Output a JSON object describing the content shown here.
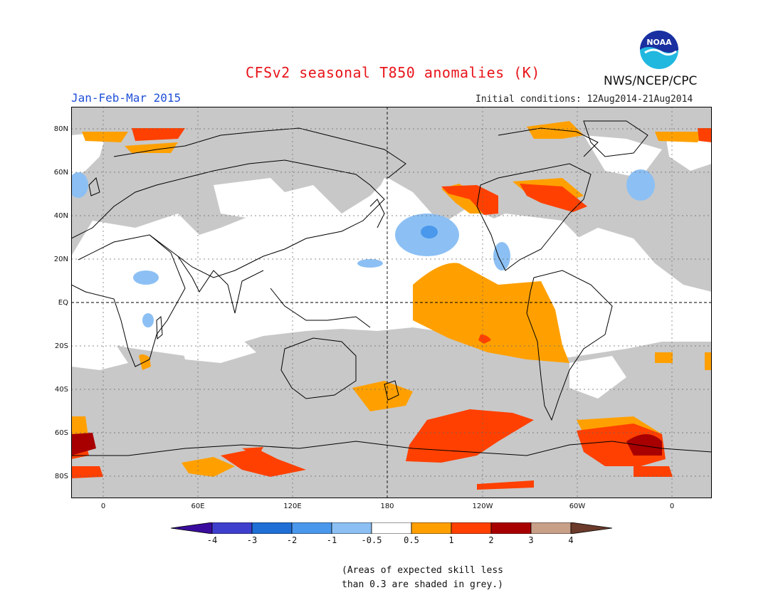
{
  "header": {
    "title": "CFSv2 seasonal T850 anomalies (K)",
    "period": "Jan-Feb-Mar 2015",
    "initial_conditions": "Initial conditions: 12Aug2014-21Aug2014",
    "organization": "NWS/NCEP/CPC",
    "logo_text": "NOAA"
  },
  "map": {
    "lat_labels": [
      "80N",
      "60N",
      "40N",
      "20N",
      "EQ",
      "20S",
      "40S",
      "60S",
      "80S"
    ],
    "lon_labels": [
      "0",
      "60E",
      "120E",
      "180",
      "120W",
      "60W",
      "0"
    ],
    "colors": {
      "skill_grey": "#c8c8c8",
      "land_outline": "#000000"
    }
  },
  "legend": {
    "tick_labels": [
      "-4",
      "-3",
      "-2",
      "-1",
      "-0.5",
      "0.5",
      "1",
      "2",
      "3",
      "4"
    ],
    "colors": [
      "#3a0c9e",
      "#3f3fce",
      "#1f6fd6",
      "#4a98ec",
      "#8cc0f4",
      "#ffffff",
      "#ffa000",
      "#ff4000",
      "#a80000",
      "#c8a088",
      "#6b3a2a"
    ]
  },
  "footnote": {
    "line1": "(Areas of expected skill less",
    "line2": "than 0.3 are shaded in grey.)"
  }
}
